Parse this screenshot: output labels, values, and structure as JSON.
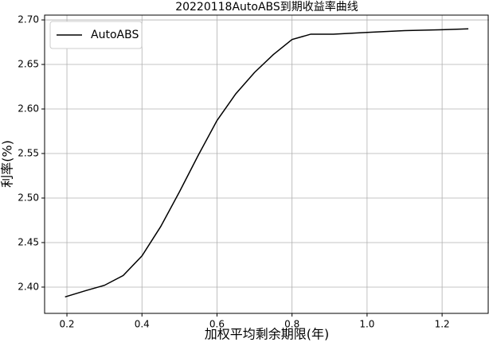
{
  "chart_data": {
    "type": "line",
    "title": "20220118AutoABS到期收益率曲线",
    "x_label": "加权平均剩余期限(年)",
    "y_label": "利率(%)",
    "x": [
      0.195,
      0.25,
      0.3,
      0.35,
      0.4,
      0.45,
      0.5,
      0.55,
      0.6,
      0.65,
      0.7,
      0.75,
      0.8,
      0.85,
      0.91,
      1.0,
      1.1,
      1.2,
      1.27
    ],
    "series": [
      {
        "name": "AutoABS",
        "color": "#000000",
        "values": [
          2.389,
          2.396,
          2.402,
          2.413,
          2.435,
          2.468,
          2.507,
          2.548,
          2.587,
          2.617,
          2.641,
          2.661,
          2.678,
          2.684,
          2.684,
          2.686,
          2.688,
          2.689,
          2.69
        ]
      }
    ],
    "xlim": [
      0.1405,
      1.325
    ],
    "ylim": [
      2.3705,
      2.7054
    ],
    "xticks": [
      0.2,
      0.4,
      0.6,
      0.8,
      {
        "value": 1,
        "label": "1.0"
      },
      1.2
    ],
    "yticks": [
      {
        "value": 2.4,
        "label": "2.40"
      },
      2.45,
      {
        "value": 2.5,
        "label": "2.50"
      },
      2.55,
      {
        "value": 2.6,
        "label": "2.60"
      },
      2.65,
      {
        "value": 2.7,
        "label": "2.70"
      }
    ],
    "grid": true,
    "legend": "upper-left"
  }
}
